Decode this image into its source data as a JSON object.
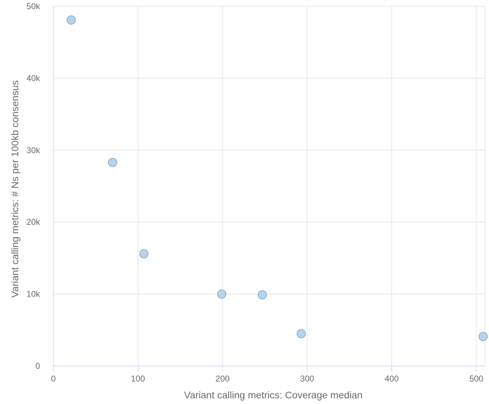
{
  "chart_data": {
    "type": "scatter",
    "xlabel": "Variant calling metrics: Coverage median",
    "ylabel": "Variant calling metrics: # Ns per 100kb consensus",
    "xlim": [
      0,
      510
    ],
    "ylim": [
      0,
      50000
    ],
    "x_ticks": [
      0,
      100,
      200,
      300,
      400,
      500
    ],
    "x_tick_labels": [
      "0",
      "100",
      "200",
      "300",
      "400",
      "500"
    ],
    "y_ticks": [
      0,
      10000,
      20000,
      30000,
      40000,
      50000
    ],
    "y_tick_labels": [
      "0",
      "10k",
      "20k",
      "30k",
      "40k",
      "50k"
    ],
    "grid": true,
    "legend": "none",
    "series": [
      {
        "color": "#b8d4ea",
        "stroke": "#7fa7c9",
        "points": [
          {
            "x": 21,
            "y": 48100
          },
          {
            "x": 70,
            "y": 28300
          },
          {
            "x": 107,
            "y": 15600
          },
          {
            "x": 199,
            "y": 10000
          },
          {
            "x": 247,
            "y": 9900
          },
          {
            "x": 293,
            "y": 4500
          },
          {
            "x": 508,
            "y": 4100
          }
        ]
      }
    ]
  }
}
